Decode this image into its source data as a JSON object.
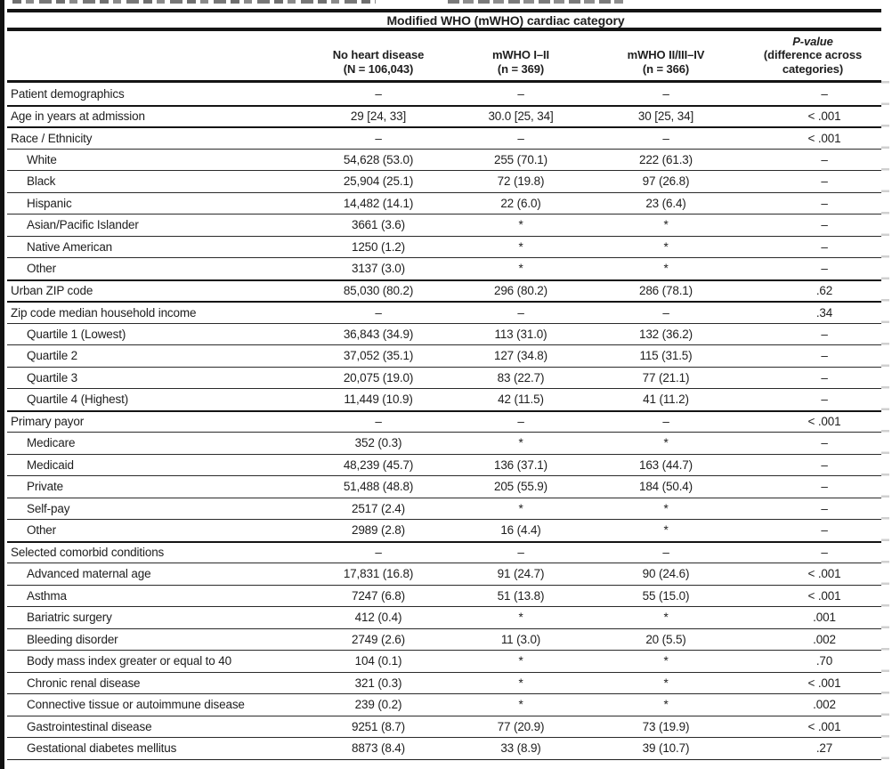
{
  "colors": {
    "page_bg": "#ffffff",
    "text": "#1e1e1e",
    "rule": "#141414",
    "scan_edge": "#d8d8d8"
  },
  "table": {
    "group_title": "Modified WHO (mWHO) cardiac category",
    "columns": [
      {
        "line1": "No heart disease",
        "line2": "(N = 106,043)"
      },
      {
        "line1": "mWHO I–II",
        "line2": "(n = 369)"
      },
      {
        "line1": "mWHO II/III–IV",
        "line2": "(n = 366)"
      },
      {
        "line1": "P-value",
        "line2": "(difference across categories)"
      }
    ],
    "rows": [
      {
        "label": "Patient demographics",
        "level": 0,
        "rule": "none",
        "values": [
          "–",
          "–",
          "–",
          "–"
        ]
      },
      {
        "label": "Age in years at admission",
        "level": 0,
        "rule": "thick",
        "values": [
          "29 [24, 33]",
          "30.0 [25, 34]",
          "30 [25, 34]",
          "< .001"
        ]
      },
      {
        "label": "Race / Ethnicity",
        "level": 0,
        "rule": "thick",
        "values": [
          "–",
          "–",
          "–",
          "< .001"
        ]
      },
      {
        "label": "White",
        "level": 1,
        "rule": "thin",
        "values": [
          "54,628 (53.0)",
          "255 (70.1)",
          "222 (61.3)",
          "–"
        ]
      },
      {
        "label": "Black",
        "level": 1,
        "rule": "thin",
        "values": [
          "25,904 (25.1)",
          "72 (19.8)",
          "97 (26.8)",
          "–"
        ]
      },
      {
        "label": "Hispanic",
        "level": 1,
        "rule": "thin",
        "values": [
          "14,482 (14.1)",
          "22 (6.0)",
          "23 (6.4)",
          "–"
        ]
      },
      {
        "label": "Asian/Pacific Islander",
        "level": 1,
        "rule": "thin",
        "values": [
          "3661 (3.6)",
          "*",
          "*",
          "–"
        ]
      },
      {
        "label": "Native American",
        "level": 1,
        "rule": "thin",
        "values": [
          "1250 (1.2)",
          "*",
          "*",
          "–"
        ]
      },
      {
        "label": "Other",
        "level": 1,
        "rule": "thin",
        "values": [
          "3137 (3.0)",
          "*",
          "*",
          "–"
        ]
      },
      {
        "label": "Urban ZIP code",
        "level": 0,
        "rule": "thick",
        "values": [
          "85,030 (80.2)",
          "296 (80.2)",
          "286 (78.1)",
          ".62"
        ]
      },
      {
        "label": "Zip code median household income",
        "level": 0,
        "rule": "thick",
        "values": [
          "–",
          "–",
          "–",
          ".34"
        ]
      },
      {
        "label": "Quartile 1 (Lowest)",
        "level": 1,
        "rule": "thin",
        "values": [
          "36,843 (34.9)",
          "113 (31.0)",
          "132 (36.2)",
          "–"
        ]
      },
      {
        "label": "Quartile 2",
        "level": 1,
        "rule": "thin",
        "values": [
          "37,052 (35.1)",
          "127 (34.8)",
          "115 (31.5)",
          "–"
        ]
      },
      {
        "label": "Quartile 3",
        "level": 1,
        "rule": "thin",
        "values": [
          "20,075 (19.0)",
          "83 (22.7)",
          "77 (21.1)",
          "–"
        ]
      },
      {
        "label": "Quartile 4 (Highest)",
        "level": 1,
        "rule": "thin",
        "values": [
          "11,449 (10.9)",
          "42 (11.5)",
          "41 (11.2)",
          "–"
        ]
      },
      {
        "label": "Primary payor",
        "level": 0,
        "rule": "thick",
        "values": [
          "–",
          "–",
          "–",
          "< .001"
        ]
      },
      {
        "label": "Medicare",
        "level": 1,
        "rule": "thin",
        "values": [
          "352 (0.3)",
          "*",
          "*",
          "–"
        ]
      },
      {
        "label": "Medicaid",
        "level": 1,
        "rule": "thin",
        "values": [
          "48,239 (45.7)",
          "136 (37.1)",
          "163 (44.7)",
          "–"
        ]
      },
      {
        "label": "Private",
        "level": 1,
        "rule": "thin",
        "values": [
          "51,488 (48.8)",
          "205 (55.9)",
          "184 (50.4)",
          "–"
        ]
      },
      {
        "label": "Self-pay",
        "level": 1,
        "rule": "thin",
        "values": [
          "2517 (2.4)",
          "*",
          "*",
          "–"
        ]
      },
      {
        "label": "Other",
        "level": 1,
        "rule": "thin",
        "values": [
          "2989 (2.8)",
          "16 (4.4)",
          "*",
          "–"
        ],
        "caret": true
      },
      {
        "label": "Selected comorbid conditions",
        "level": 0,
        "rule": "thick",
        "values": [
          "–",
          "–",
          "–",
          "–"
        ]
      },
      {
        "label": "Advanced maternal age",
        "level": 1,
        "rule": "thin",
        "values": [
          "17,831 (16.8)",
          "91 (24.7)",
          "90 (24.6)",
          "< .001"
        ]
      },
      {
        "label": "Asthma",
        "level": 1,
        "rule": "thin",
        "values": [
          "7247 (6.8)",
          "51 (13.8)",
          "55 (15.0)",
          "< .001"
        ]
      },
      {
        "label": "Bariatric surgery",
        "level": 1,
        "rule": "thin",
        "values": [
          "412 (0.4)",
          "*",
          "*",
          ".001"
        ]
      },
      {
        "label": "Bleeding disorder",
        "level": 1,
        "rule": "thin",
        "values": [
          "2749 (2.6)",
          "11 (3.0)",
          "20 (5.5)",
          ".002"
        ]
      },
      {
        "label": "Body mass index greater or equal to 40",
        "level": 1,
        "rule": "thin",
        "values": [
          "104 (0.1)",
          "*",
          "*",
          ".70"
        ]
      },
      {
        "label": "Chronic renal disease",
        "level": 1,
        "rule": "thin",
        "values": [
          "321 (0.3)",
          "*",
          "*",
          "< .001"
        ]
      },
      {
        "label": "Connective tissue or autoimmune disease",
        "level": 1,
        "rule": "thin",
        "values": [
          "239 (0.2)",
          "*",
          "*",
          ".002"
        ]
      },
      {
        "label": "Gastrointestinal disease",
        "level": 1,
        "rule": "thin",
        "values": [
          "9251 (8.7)",
          "77 (20.9)",
          "73 (19.9)",
          "< .001"
        ]
      },
      {
        "label": "Gestational diabetes mellitus",
        "level": 1,
        "rule": "thin",
        "values": [
          "8873 (8.4)",
          "33 (8.9)",
          "39 (10.7)",
          ".27"
        ]
      }
    ]
  }
}
